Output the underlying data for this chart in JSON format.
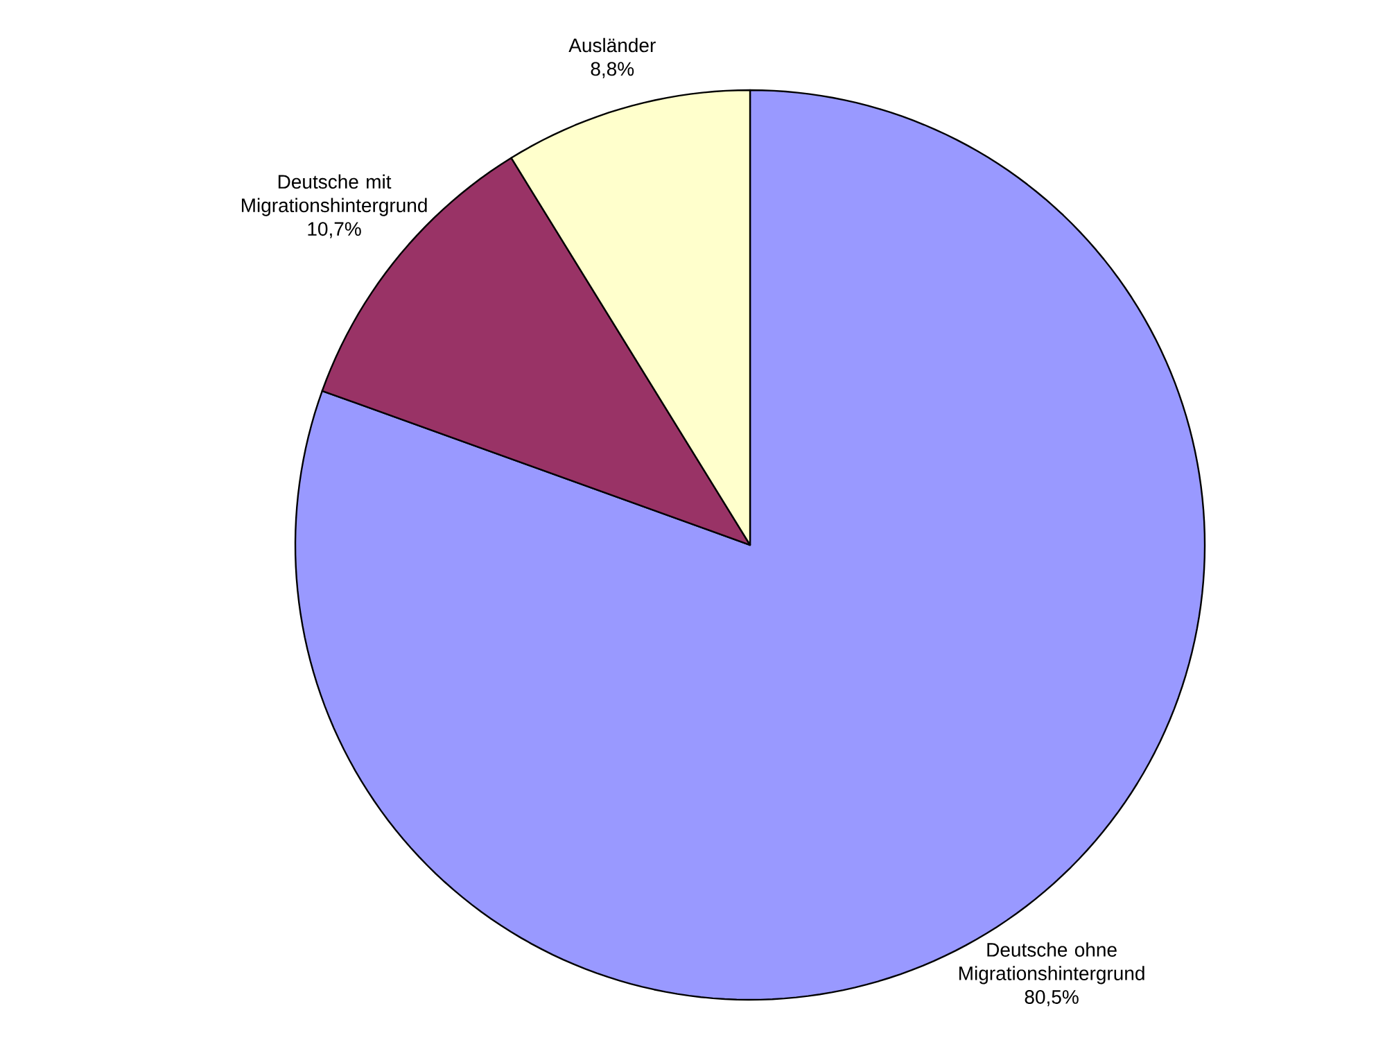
{
  "chart_data": {
    "type": "pie",
    "categories": [
      "Deutsche ohne Migrationshintergrund",
      "Deutsche mit Migrationshintergrund",
      "Ausländer"
    ],
    "values": [
      80.5,
      10.7,
      8.8
    ],
    "value_labels": [
      "80,5%",
      "10,7%",
      "8,8%"
    ],
    "colors": [
      "#9999ff",
      "#993366",
      "#ffffcc"
    ]
  }
}
